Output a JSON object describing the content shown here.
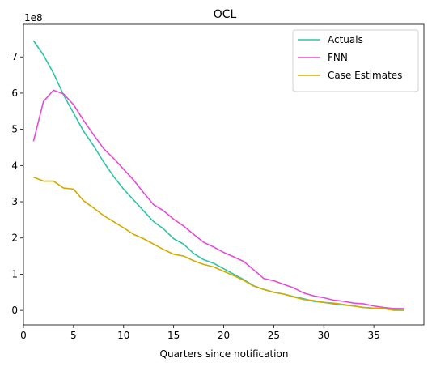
{
  "chart_data": {
    "type": "line",
    "title": "OCL",
    "xlabel": "Quarters since notification",
    "ylabel": "",
    "y_offset_label": "1e8",
    "xlim": [
      0,
      40
    ],
    "ylim": [
      -0.4,
      7.9
    ],
    "x_ticks": [
      0,
      5,
      10,
      15,
      20,
      25,
      30,
      35
    ],
    "y_ticks": [
      0,
      1,
      2,
      3,
      4,
      5,
      6,
      7
    ],
    "grid": false,
    "legend_placement": "top-right",
    "x": [
      1,
      2,
      3,
      4,
      5,
      6,
      7,
      8,
      9,
      10,
      11,
      12,
      13,
      14,
      15,
      16,
      17,
      18,
      19,
      20,
      21,
      22,
      23,
      24,
      25,
      26,
      27,
      28,
      29,
      30,
      31,
      32,
      33,
      34,
      35,
      36,
      37,
      38
    ],
    "series": [
      {
        "name": "Actuals",
        "color": "#2ec4a6",
        "values": [
          7.45,
          7.05,
          6.55,
          5.95,
          5.45,
          4.95,
          4.55,
          4.1,
          3.7,
          3.35,
          3.05,
          2.75,
          2.45,
          2.25,
          1.98,
          1.83,
          1.57,
          1.4,
          1.3,
          1.15,
          1.0,
          0.85,
          0.68,
          0.58,
          0.5,
          0.45,
          0.38,
          0.32,
          0.25,
          0.22,
          0.18,
          0.15,
          0.12,
          0.08,
          0.06,
          0.05,
          0.02,
          0.01
        ]
      },
      {
        "name": "FNN",
        "color": "#e64bd6",
        "values": [
          4.67,
          5.77,
          6.08,
          5.98,
          5.68,
          5.25,
          4.85,
          4.47,
          4.2,
          3.9,
          3.6,
          3.25,
          2.92,
          2.75,
          2.52,
          2.33,
          2.1,
          1.88,
          1.75,
          1.6,
          1.48,
          1.35,
          1.12,
          0.88,
          0.82,
          0.72,
          0.62,
          0.48,
          0.4,
          0.35,
          0.28,
          0.25,
          0.2,
          0.18,
          0.12,
          0.08,
          0.05,
          0.05
        ]
      },
      {
        "name": "Case Estimates",
        "color": "#d4aa00",
        "values": [
          3.68,
          3.57,
          3.57,
          3.38,
          3.35,
          3.03,
          2.83,
          2.62,
          2.45,
          2.28,
          2.1,
          1.98,
          1.83,
          1.68,
          1.55,
          1.5,
          1.37,
          1.27,
          1.2,
          1.08,
          0.96,
          0.83,
          0.67,
          0.58,
          0.5,
          0.45,
          0.37,
          0.3,
          0.27,
          0.22,
          0.2,
          0.16,
          0.12,
          0.08,
          0.06,
          0.05,
          0.0,
          0.0
        ]
      }
    ]
  }
}
